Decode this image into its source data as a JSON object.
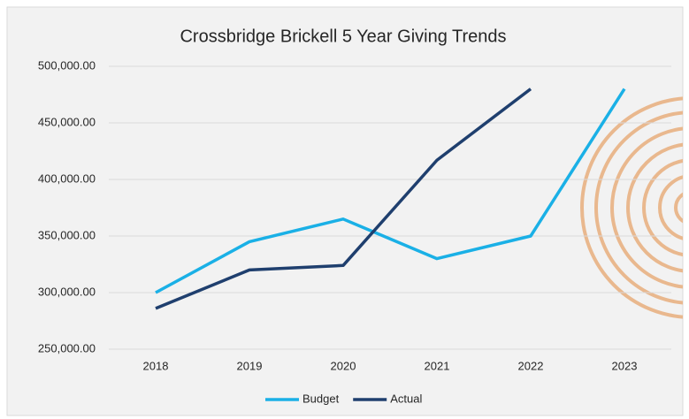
{
  "chart_data": {
    "type": "line",
    "title": "Crossbridge Brickell 5 Year Giving Trends",
    "categories": [
      "2018",
      "2019",
      "2020",
      "2021",
      "2022",
      "2023"
    ],
    "series": [
      {
        "name": "Budget",
        "color": "#1ab0e6",
        "values": [
          300000,
          345000,
          365000,
          330000,
          350000,
          480000
        ]
      },
      {
        "name": "Actual",
        "color": "#1f3f6e",
        "values": [
          286000,
          320000,
          324000,
          417000,
          480000,
          null
        ]
      }
    ],
    "ylim": [
      250000,
      500000
    ],
    "yticks": [
      {
        "value": 250000,
        "label": "250,000.00"
      },
      {
        "value": 300000,
        "label": "300,000.00"
      },
      {
        "value": 350000,
        "label": "350,000.00"
      },
      {
        "value": 400000,
        "label": "400,000.00"
      },
      {
        "value": 450000,
        "label": "450,000.00"
      },
      {
        "value": 500000,
        "label": "500,000.00"
      }
    ],
    "grid": true,
    "legend": "bottom"
  }
}
